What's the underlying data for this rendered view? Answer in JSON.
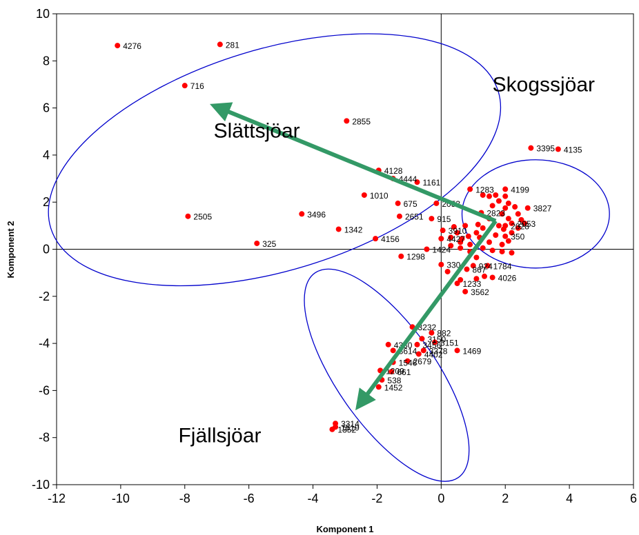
{
  "chart_data": {
    "type": "scatter",
    "title": "",
    "xlabel": "Komponent 1",
    "ylabel": "Komponent 2",
    "xlim": [
      -12,
      6
    ],
    "ylim": [
      -10,
      10
    ],
    "x_ticks": [
      -12,
      -10,
      -8,
      -6,
      -4,
      -2,
      0,
      2,
      4,
      6
    ],
    "y_ticks": [
      -10,
      -8,
      -6,
      -4,
      -2,
      0,
      2,
      4,
      6,
      8,
      10
    ],
    "x_tick_labels": [
      "-12",
      "-10",
      "-8",
      "-6",
      "-4",
      "-2",
      "0",
      "2",
      "4",
      "6"
    ],
    "y_tick_labels": [
      "-10",
      "-8",
      "-6",
      "-4",
      "-2",
      "0",
      "2",
      "4",
      "6",
      "8",
      "10"
    ],
    "point_color": "#ff0000",
    "ellipse_color": "#0000cc",
    "arrow_color": "#339966",
    "grid": false,
    "groups": [
      {
        "name": "Slättsjöar",
        "label_at": [
          -7.1,
          4.75
        ],
        "ellipse": {
          "cx": -5.2,
          "cy": 3.8,
          "rx": 7.3,
          "ry": 4.7,
          "angle_deg": -17
        }
      },
      {
        "name": "Skogssjöar",
        "label_at": [
          1.6,
          6.7
        ],
        "ellipse": {
          "cx": 2.95,
          "cy": 1.5,
          "rx": 2.3,
          "ry": 2.3,
          "angle_deg": 0
        }
      },
      {
        "name": "Fjällsjöar",
        "label_at": [
          -8.2,
          -8.2
        ],
        "ellipse": {
          "cx": -1.7,
          "cy": -5.35,
          "rx": 3.9,
          "ry": 2.1,
          "angle_deg": 55
        }
      }
    ],
    "arrows": [
      {
        "from": [
          1.7,
          1.2
        ],
        "to": [
          -7.1,
          6.1
        ]
      },
      {
        "from": [
          1.7,
          1.2
        ],
        "to": [
          -2.6,
          -6.7
        ]
      }
    ],
    "points": [
      {
        "label": "4276",
        "x": -10.1,
        "y": 8.65
      },
      {
        "label": "281",
        "x": -6.9,
        "y": 8.7
      },
      {
        "label": "716",
        "x": -8.0,
        "y": 6.95
      },
      {
        "label": "2855",
        "x": -2.95,
        "y": 5.45
      },
      {
        "label": "4128",
        "x": -1.95,
        "y": 3.35
      },
      {
        "label": "4444",
        "x": -1.5,
        "y": 3.0
      },
      {
        "label": "1161",
        "x": -0.75,
        "y": 2.85
      },
      {
        "label": "1010",
        "x": -2.4,
        "y": 2.3
      },
      {
        "label": "675",
        "x": -1.35,
        "y": 1.95
      },
      {
        "label": "2053",
        "x": -0.15,
        "y": 1.95
      },
      {
        "label": "2505",
        "x": -7.9,
        "y": 1.4
      },
      {
        "label": "3496",
        "x": -4.35,
        "y": 1.5
      },
      {
        "label": "2651",
        "x": -1.3,
        "y": 1.4
      },
      {
        "label": "915",
        "x": -0.3,
        "y": 1.3
      },
      {
        "label": "1342",
        "x": -3.2,
        "y": 0.85
      },
      {
        "label": "3910",
        "x": 0.05,
        "y": 0.8
      },
      {
        "label": "4156",
        "x": -2.05,
        "y": 0.45
      },
      {
        "label": "4427",
        "x": 0.0,
        "y": 0.45
      },
      {
        "label": "325",
        "x": -5.75,
        "y": 0.25
      },
      {
        "label": "1424",
        "x": -0.45,
        "y": 0.0
      },
      {
        "label": "1298",
        "x": -1.25,
        "y": -0.3
      },
      {
        "label": "330",
        "x": 0.0,
        "y": -0.65
      },
      {
        "label": "3395",
        "x": 2.8,
        "y": 4.3
      },
      {
        "label": "4135",
        "x": 3.65,
        "y": 4.25
      },
      {
        "label": "1283",
        "x": 0.9,
        "y": 2.55
      },
      {
        "label": "4199",
        "x": 2.0,
        "y": 2.55
      },
      {
        "label": "3827",
        "x": 2.7,
        "y": 1.75
      },
      {
        "label": "2823",
        "x": 1.25,
        "y": 1.55
      },
      {
        "label": "2053",
        "x": 2.2,
        "y": 1.1
      },
      {
        "label": "2028",
        "x": 2.0,
        "y": 1.0
      },
      {
        "label": "350",
        "x": 2.0,
        "y": 0.55
      },
      {
        "label": "1784",
        "x": 1.45,
        "y": -0.7
      },
      {
        "label": "924",
        "x": 1.0,
        "y": -0.7
      },
      {
        "label": "867",
        "x": 0.8,
        "y": -0.85
      },
      {
        "label": "4026",
        "x": 1.6,
        "y": -1.2
      },
      {
        "label": "1233",
        "x": 0.5,
        "y": -1.45
      },
      {
        "label": "3562",
        "x": 0.75,
        "y": -1.8
      },
      {
        "label": "3232",
        "x": -0.9,
        "y": -3.3
      },
      {
        "label": "882",
        "x": -0.3,
        "y": -3.55
      },
      {
        "label": "3150",
        "x": -0.6,
        "y": -3.8
      },
      {
        "label": "3151",
        "x": -0.2,
        "y": -3.95
      },
      {
        "label": "4330",
        "x": -1.65,
        "y": -4.05
      },
      {
        "label": "3456",
        "x": -0.75,
        "y": -4.05
      },
      {
        "label": "1469",
        "x": 0.5,
        "y": -4.3
      },
      {
        "label": "3378",
        "x": -0.55,
        "y": -4.3
      },
      {
        "label": "3614",
        "x": -1.5,
        "y": -4.3
      },
      {
        "label": "4402",
        "x": -0.7,
        "y": -4.45
      },
      {
        "label": "2679",
        "x": -1.05,
        "y": -4.75
      },
      {
        "label": "1546",
        "x": -1.5,
        "y": -4.8
      },
      {
        "label": "1209",
        "x": -1.9,
        "y": -5.15
      },
      {
        "label": "661",
        "x": -1.55,
        "y": -5.2
      },
      {
        "label": "538",
        "x": -1.85,
        "y": -5.55
      },
      {
        "label": "1452",
        "x": -1.95,
        "y": -5.85
      },
      {
        "label": "3314",
        "x": -3.3,
        "y": -7.4
      },
      {
        "label": "1519",
        "x": -3.3,
        "y": -7.55
      },
      {
        "label": "1352",
        "x": -3.4,
        "y": -7.65
      }
    ],
    "unlabeled_points": [
      {
        "x": 0.4,
        "y": 0.95
      },
      {
        "x": 0.75,
        "y": 1.0
      },
      {
        "x": 1.1,
        "y": 0.7
      },
      {
        "x": 0.3,
        "y": 0.5
      },
      {
        "x": 0.6,
        "y": 0.3
      },
      {
        "x": 0.9,
        "y": 0.2
      },
      {
        "x": 1.2,
        "y": 0.5
      },
      {
        "x": 1.5,
        "y": 0.3
      },
      {
        "x": 1.7,
        "y": 0.6
      },
      {
        "x": 1.9,
        "y": 0.2
      },
      {
        "x": 2.1,
        "y": 0.35
      },
      {
        "x": 1.3,
        "y": 0.05
      },
      {
        "x": 1.6,
        "y": -0.05
      },
      {
        "x": 1.9,
        "y": -0.1
      },
      {
        "x": 2.2,
        "y": -0.15
      },
      {
        "x": 0.3,
        "y": 0.15
      },
      {
        "x": 0.6,
        "y": 0.05
      },
      {
        "x": 0.9,
        "y": -0.1
      },
      {
        "x": 1.1,
        "y": -0.35
      },
      {
        "x": 0.2,
        "y": -0.95
      },
      {
        "x": 1.3,
        "y": 2.3
      },
      {
        "x": 1.5,
        "y": 2.25
      },
      {
        "x": 1.7,
        "y": 2.3
      },
      {
        "x": 1.8,
        "y": 2.05
      },
      {
        "x": 2.0,
        "y": 2.25
      },
      {
        "x": 2.1,
        "y": 1.95
      },
      {
        "x": 1.6,
        "y": 1.85
      },
      {
        "x": 2.0,
        "y": 1.75
      },
      {
        "x": 2.3,
        "y": 1.8
      },
      {
        "x": 2.4,
        "y": 1.5
      },
      {
        "x": 1.9,
        "y": 1.5
      },
      {
        "x": 2.1,
        "y": 1.3
      },
      {
        "x": 2.5,
        "y": 1.25
      },
      {
        "x": 1.5,
        "y": 1.3
      },
      {
        "x": 1.8,
        "y": 1.0
      },
      {
        "x": 2.4,
        "y": 0.9
      },
      {
        "x": 2.2,
        "y": 0.7
      },
      {
        "x": 1.95,
        "y": 0.85
      },
      {
        "x": 1.15,
        "y": 1.05
      },
      {
        "x": 0.85,
        "y": 0.55
      },
      {
        "x": 0.5,
        "y": 0.7
      },
      {
        "x": 0.65,
        "y": 0.45
      },
      {
        "x": 1.35,
        "y": -1.15
      },
      {
        "x": 1.1,
        "y": -1.25
      },
      {
        "x": 0.6,
        "y": -1.3
      },
      {
        "x": 1.3,
        "y": 0.9
      },
      {
        "x": 2.6,
        "y": 1.1
      }
    ]
  }
}
